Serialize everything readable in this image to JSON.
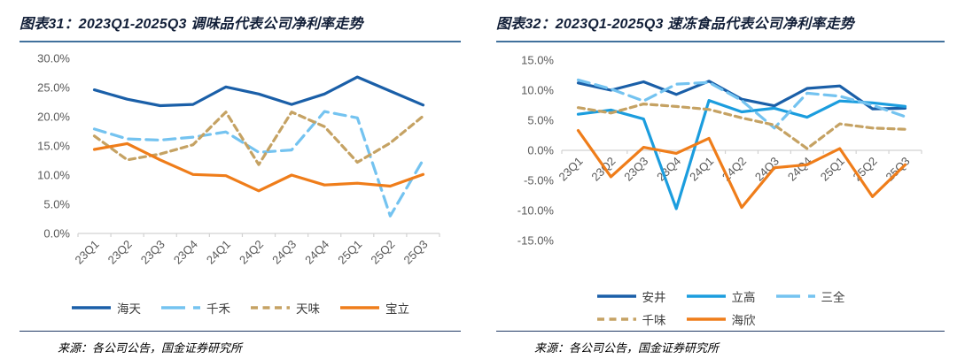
{
  "chart_data": [
    {
      "type": "line",
      "title": "图表31：2023Q1-2025Q3 调味品代表公司净利率走势",
      "source": "来源：各公司公告，国金证券研究所",
      "categories": [
        "23Q1",
        "23Q2",
        "23Q3",
        "23Q4",
        "24Q1",
        "24Q2",
        "24Q3",
        "24Q4",
        "25Q1",
        "25Q2",
        "25Q3"
      ],
      "xlabel": "",
      "ylabel": "",
      "ylim": [
        0,
        30
      ],
      "yticks": [
        30,
        25,
        20,
        15,
        10,
        5,
        0
      ],
      "ytick_format": "one-decimal-percent",
      "grid": false,
      "legend_position": "bottom",
      "legend_rows": [
        [
          "海天",
          "千禾",
          "天味",
          "宝立"
        ]
      ],
      "series": [
        {
          "name": "海天",
          "color": "#1A5FA8",
          "dash": "solid",
          "values": [
            24.6,
            23.0,
            21.9,
            22.1,
            25.1,
            23.9,
            22.1,
            23.9,
            26.8,
            24.4,
            22.0
          ]
        },
        {
          "name": "千禾",
          "color": "#74C3F0",
          "dash": "long-dash",
          "values": [
            17.9,
            16.2,
            16.0,
            16.5,
            17.4,
            13.9,
            14.3,
            20.9,
            19.8,
            3.0,
            12.6
          ]
        },
        {
          "name": "天味",
          "color": "#C5A263",
          "dash": "dash",
          "values": [
            16.7,
            12.6,
            13.6,
            15.2,
            20.8,
            11.8,
            20.8,
            18.3,
            12.2,
            15.5,
            20.1
          ]
        },
        {
          "name": "宝立",
          "color": "#EF7D1A",
          "dash": "solid",
          "values": [
            14.4,
            15.4,
            12.6,
            10.1,
            9.9,
            7.3,
            10.0,
            8.3,
            8.6,
            8.1,
            10.1
          ]
        }
      ]
    },
    {
      "type": "line",
      "title": "图表32：2023Q1-2025Q3 速冻食品代表公司净利率走势",
      "source": "来源：各公司公告，国金证券研究所",
      "categories": [
        "23Q1",
        "23Q2",
        "23Q3",
        "23Q4",
        "24Q1",
        "24Q2",
        "24Q3",
        "24Q4",
        "25Q1",
        "25Q2",
        "25Q3"
      ],
      "xlabel": "",
      "ylabel": "",
      "ylim": [
        -15,
        15
      ],
      "yticks": [
        15,
        10,
        5,
        0,
        -5,
        -10,
        -15
      ],
      "ytick_format": "one-decimal-percent",
      "grid": false,
      "legend_position": "bottom",
      "legend_rows": [
        [
          "安井",
          "立高",
          "三全"
        ],
        [
          "千味",
          "海欣"
        ]
      ],
      "series": [
        {
          "name": "安井",
          "color": "#1A5FA8",
          "dash": "solid",
          "values": [
            11.2,
            10.0,
            11.4,
            9.3,
            11.5,
            8.5,
            7.4,
            10.3,
            10.7,
            6.9,
            7.0
          ]
        },
        {
          "name": "立高",
          "color": "#1B9DDE",
          "dash": "solid",
          "values": [
            6.0,
            6.7,
            5.2,
            -9.7,
            8.3,
            6.4,
            7.0,
            5.5,
            8.2,
            7.9,
            7.3
          ]
        },
        {
          "name": "三全",
          "color": "#74C3F0",
          "dash": "long-dash",
          "values": [
            11.7,
            10.2,
            8.2,
            11.0,
            11.3,
            8.3,
            3.7,
            9.5,
            9.0,
            7.5,
            5.6
          ]
        },
        {
          "name": "千味",
          "color": "#C5A263",
          "dash": "dash",
          "values": [
            7.1,
            6.2,
            7.7,
            7.3,
            6.8,
            5.4,
            4.2,
            0.3,
            4.4,
            3.7,
            3.5
          ]
        },
        {
          "name": "海欣",
          "color": "#EF7D1A",
          "dash": "solid",
          "values": [
            3.3,
            -4.4,
            0.5,
            -0.5,
            2.0,
            -9.5,
            -2.9,
            -2.4,
            0.3,
            -7.7,
            -2.4
          ]
        }
      ]
    }
  ],
  "styles": {
    "title_color": "#121f38",
    "title_underline_color": "#41719C",
    "source_rule_color": "#1F3864",
    "axis_text_color": "#595959",
    "axis_line_color": "#D2D2D2"
  }
}
